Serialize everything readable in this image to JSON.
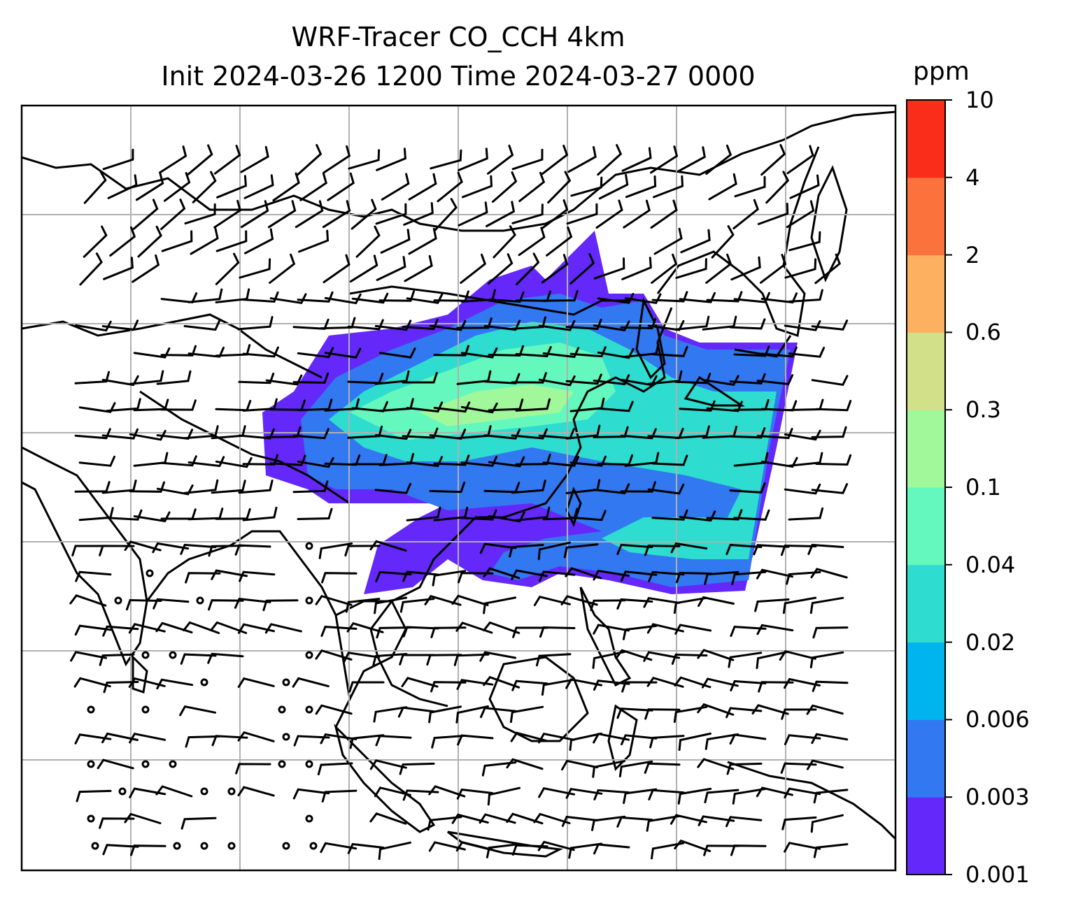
{
  "title": {
    "line1": "WRF-Tracer CO_CCH 4km",
    "line2": "Init 2024-03-26 1200 Time 2024-03-27 0000"
  },
  "colorbar": {
    "unit": "ppm",
    "levels": [
      "0.001",
      "0.003",
      "0.006",
      "0.02",
      "0.04",
      "0.1",
      "0.3",
      "0.6",
      "2",
      "4",
      "10"
    ],
    "colors": [
      "#6428fa",
      "#3278f0",
      "#00b4ee",
      "#2edcd0",
      "#64f8be",
      "#a0f89a",
      "#d2e08a",
      "#fcb060",
      "#fc723c",
      "#fa2c1a"
    ]
  },
  "map": {
    "gridlines": true,
    "gridline_color": "#b0b0b0",
    "coastline_color": "#000000",
    "field": "CO_CCH tracer concentration with wind barbs"
  }
}
